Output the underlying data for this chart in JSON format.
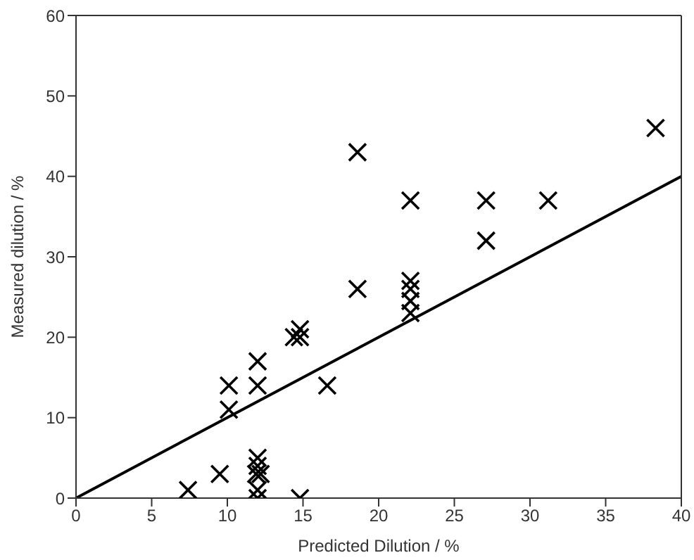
{
  "chart_data": {
    "type": "scatter",
    "xlabel": "Predicted Dilution / %",
    "ylabel": "Measured dilution / %",
    "xlim": [
      0,
      40
    ],
    "ylim": [
      0,
      60
    ],
    "xticks": [
      0,
      5,
      10,
      15,
      20,
      25,
      30,
      35,
      40
    ],
    "yticks": [
      0,
      10,
      20,
      30,
      40,
      50,
      60
    ],
    "grid": false,
    "marker": "cross",
    "series": [
      {
        "color": "#000000",
        "x": [
          7.4,
          9.5,
          10.1,
          10.1,
          12,
          12,
          12,
          12,
          11.9,
          12.2,
          12,
          12,
          14.4,
          14.8,
          14.8,
          14.8,
          16.6,
          18.6,
          18.6,
          22.1,
          22.1,
          22.1,
          22.1,
          22.1,
          27.1,
          27.1,
          31.2,
          38.3
        ],
        "values": [
          1,
          3,
          11,
          14,
          17,
          14,
          5,
          4,
          3,
          3,
          1,
          0,
          20,
          21,
          20,
          0,
          14,
          43,
          26,
          37,
          27,
          26,
          24.5,
          23,
          37,
          32,
          37,
          46
        ]
      },
      {
        "type": "line",
        "color": "#000000",
        "x": [
          0,
          40
        ],
        "values": [
          0,
          40
        ],
        "marker": "none",
        "line_style": "solid"
      }
    ]
  }
}
